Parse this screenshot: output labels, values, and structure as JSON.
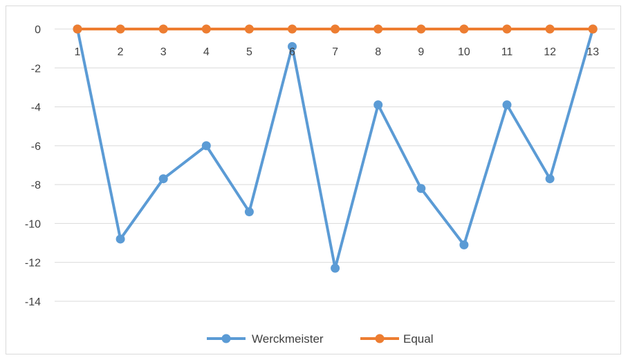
{
  "chart_data": {
    "type": "line",
    "categories": [
      "1",
      "2",
      "3",
      "4",
      "5",
      "6",
      "7",
      "8",
      "9",
      "10",
      "11",
      "12",
      "13"
    ],
    "ylim": [
      -14,
      0
    ],
    "yticks": [
      0,
      -2,
      -4,
      -6,
      -8,
      -10,
      -12,
      -14
    ],
    "ytick_labels": [
      "0",
      "-2",
      "-4",
      "-6",
      "-8",
      "-10",
      "-12",
      "-14"
    ],
    "grid": true,
    "legend_position": "bottom",
    "series": [
      {
        "name": "Werckmeister",
        "color": "#5b9bd5",
        "values": [
          0,
          -10.8,
          -7.7,
          -6,
          -9.4,
          -0.9,
          -12.3,
          -3.9,
          -8.2,
          -11.1,
          -3.9,
          -7.7,
          0
        ]
      },
      {
        "name": "Equal",
        "color": "#ed7d31",
        "values": [
          0,
          0,
          0,
          0,
          0,
          0,
          0,
          0,
          0,
          0,
          0,
          0,
          0
        ]
      }
    ]
  }
}
